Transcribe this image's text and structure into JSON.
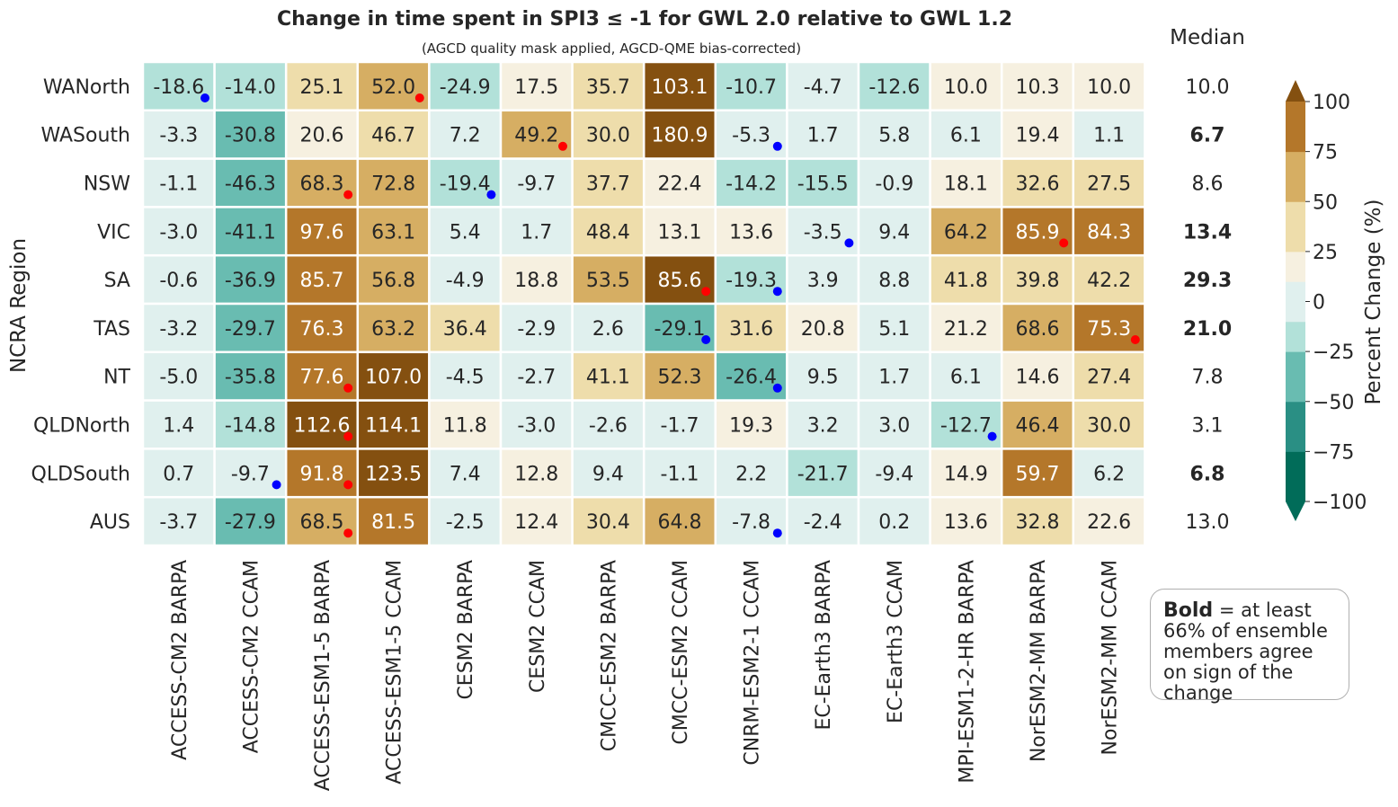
{
  "chart_data": {
    "type": "heatmap",
    "title": "Change in time spent in SPI3 ≤ -1 for GWL 2.0 relative to GWL 1.2",
    "subtitle": "(AGCD quality mask applied, AGCD-QME bias-corrected)",
    "ylabel": "NCRA Region",
    "colorbar_label": "Percent Change (%)",
    "colorbar_ticks": [
      100,
      75,
      50,
      25,
      0,
      -25,
      -50,
      -75,
      -100
    ],
    "colorbar_tick_labels": [
      "100",
      "75",
      "50",
      "25",
      "0",
      "−25",
      "−50",
      "−75",
      "−100"
    ],
    "vmin": -100,
    "vmax": 100,
    "bin_edges": [
      -100,
      -75,
      -50,
      -25,
      -10,
      10,
      25,
      50,
      75,
      100
    ],
    "bin_colors": [
      "#016c59",
      "#2a8f84",
      "#69bcb1",
      "#b2e1d9",
      "#e0f0ee",
      "#f6f0e0",
      "#eeddab",
      "#d6ae63",
      "#b4772a",
      "#845010"
    ],
    "under_color": "#016c59",
    "over_color": "#845010",
    "rows": [
      "WANorth",
      "WASouth",
      "NSW",
      "VIC",
      "SA",
      "TAS",
      "NT",
      "QLDNorth",
      "QLDSouth",
      "AUS"
    ],
    "columns": [
      "ACCESS-CM2 BARPA",
      "ACCESS-CM2 CCAM",
      "ACCESS-ESM1-5 BARPA",
      "ACCESS-ESM1-5 CCAM",
      "CESM2 BARPA",
      "CESM2 CCAM",
      "CMCC-ESM2 BARPA",
      "CMCC-ESM2 CCAM",
      "CNRM-ESM2-1 CCAM",
      "EC-Earth3 BARPA",
      "EC-Earth3 CCAM",
      "MPI-ESM1-2-HR BARPA",
      "NorESM2-MM BARPA",
      "NorESM2-MM CCAM"
    ],
    "values": [
      [
        -18.6,
        -14.0,
        25.1,
        52.0,
        -24.9,
        17.5,
        35.7,
        103.1,
        -10.7,
        -4.7,
        -12.6,
        10.0,
        10.3,
        10.0
      ],
      [
        -3.3,
        -30.8,
        20.6,
        46.7,
        7.2,
        49.2,
        30.0,
        180.9,
        -5.3,
        1.7,
        5.8,
        6.1,
        19.4,
        1.1
      ],
      [
        -1.1,
        -46.3,
        68.3,
        72.8,
        -19.4,
        -9.7,
        37.7,
        22.4,
        -14.2,
        -15.5,
        -0.9,
        18.1,
        32.6,
        27.5
      ],
      [
        -3.0,
        -41.1,
        97.6,
        63.1,
        5.4,
        1.7,
        48.4,
        13.1,
        13.6,
        -3.5,
        9.4,
        64.2,
        85.9,
        84.3
      ],
      [
        -0.6,
        -36.9,
        85.7,
        56.8,
        -4.9,
        18.8,
        53.5,
        85.6,
        -19.3,
        3.9,
        8.8,
        41.8,
        39.8,
        42.2
      ],
      [
        -3.2,
        -29.7,
        76.3,
        63.2,
        36.4,
        -2.9,
        2.6,
        -29.1,
        31.6,
        20.8,
        5.1,
        21.2,
        68.6,
        75.3
      ],
      [
        -5.0,
        -35.8,
        77.6,
        107.0,
        -4.5,
        -2.7,
        41.1,
        52.3,
        -26.4,
        9.5,
        1.7,
        6.1,
        14.6,
        27.4
      ],
      [
        1.4,
        -14.8,
        112.6,
        114.1,
        11.8,
        -3.0,
        -2.6,
        -1.7,
        19.3,
        3.2,
        3.0,
        -12.7,
        46.4,
        30.0
      ],
      [
        0.7,
        -9.7,
        91.8,
        123.5,
        7.4,
        12.8,
        9.4,
        -1.1,
        2.2,
        -21.7,
        -9.4,
        14.9,
        59.7,
        6.2
      ],
      [
        -3.7,
        -27.9,
        68.5,
        81.5,
        -2.5,
        12.4,
        30.4,
        64.8,
        -7.8,
        -2.4,
        0.2,
        13.6,
        32.8,
        22.6
      ]
    ],
    "cell_color_overrides": [
      {
        "row": 1,
        "col": 5,
        "value": 49.2,
        "color": "#d6ae63"
      },
      {
        "row": 4,
        "col": 7,
        "value": 85.6,
        "color": "#845010"
      },
      {
        "row": 7,
        "col": 12,
        "value": 46.4,
        "color": "#d6ae63"
      },
      {
        "row": 8,
        "col": 12,
        "value": 59.7,
        "color": "#b4772a"
      },
      {
        "row": 5,
        "col": 13,
        "value": 75.3,
        "color": "#b4772a"
      }
    ],
    "markers": [
      {
        "row": 0,
        "col": 0,
        "color": "blue"
      },
      {
        "row": 0,
        "col": 3,
        "color": "red"
      },
      {
        "row": 1,
        "col": 5,
        "color": "red"
      },
      {
        "row": 1,
        "col": 8,
        "color": "blue"
      },
      {
        "row": 2,
        "col": 2,
        "color": "red"
      },
      {
        "row": 2,
        "col": 4,
        "color": "blue"
      },
      {
        "row": 3,
        "col": 9,
        "color": "blue"
      },
      {
        "row": 3,
        "col": 12,
        "color": "red"
      },
      {
        "row": 4,
        "col": 7,
        "color": "red"
      },
      {
        "row": 4,
        "col": 8,
        "color": "blue"
      },
      {
        "row": 5,
        "col": 7,
        "color": "blue"
      },
      {
        "row": 5,
        "col": 13,
        "color": "red"
      },
      {
        "row": 6,
        "col": 2,
        "color": "red"
      },
      {
        "row": 6,
        "col": 8,
        "color": "blue"
      },
      {
        "row": 7,
        "col": 2,
        "color": "red"
      },
      {
        "row": 7,
        "col": 11,
        "color": "blue"
      },
      {
        "row": 8,
        "col": 1,
        "color": "blue"
      },
      {
        "row": 8,
        "col": 2,
        "color": "red"
      },
      {
        "row": 9,
        "col": 2,
        "color": "red"
      },
      {
        "row": 9,
        "col": 8,
        "color": "blue"
      }
    ],
    "median_header": "Median",
    "medians": [
      {
        "value": "10.0",
        "bold": false
      },
      {
        "value": "6.7",
        "bold": true
      },
      {
        "value": "8.6",
        "bold": false
      },
      {
        "value": "13.4",
        "bold": true
      },
      {
        "value": "29.3",
        "bold": true
      },
      {
        "value": "21.0",
        "bold": true
      },
      {
        "value": "7.8",
        "bold": false
      },
      {
        "value": "3.1",
        "bold": false
      },
      {
        "value": "6.8",
        "bold": true
      },
      {
        "value": "13.0",
        "bold": false
      }
    ],
    "note_bold": "Bold",
    "note_text": "= at least 66% of ensemble members agree on sign of the change"
  }
}
